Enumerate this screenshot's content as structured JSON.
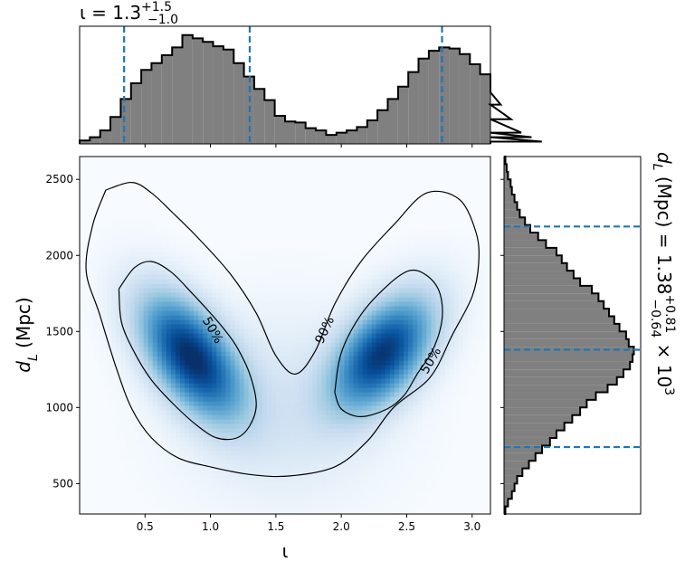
{
  "chart_data": [
    {
      "type": "heatmap",
      "panel": "joint",
      "xlabel": "ι",
      "ylabel": "d_L (Mpc)",
      "xlim": [
        0.0,
        3.14
      ],
      "ylim": [
        300,
        2650
      ],
      "xticks": [
        0.5,
        1.0,
        1.5,
        2.0,
        2.5,
        3.0
      ],
      "xtick_labels": [
        "0.5",
        "1.0",
        "1.5",
        "2.0",
        "2.5",
        "3.0"
      ],
      "yticks": [
        500,
        1000,
        1500,
        2000,
        2500
      ],
      "ytick_labels": [
        "500",
        "1000",
        "1500",
        "2000",
        "2500"
      ],
      "colormap": "Blues",
      "density_modes": [
        {
          "x": 0.85,
          "y": 1340,
          "sx": 0.26,
          "sy": 270,
          "rho": -0.55,
          "w": 1.0
        },
        {
          "x": 2.32,
          "y": 1360,
          "sx": 0.26,
          "sy": 250,
          "rho": 0.5,
          "w": 0.95
        }
      ],
      "contours": [
        {
          "level": "90%",
          "points": [
            [
              0.2,
              2430
            ],
            [
              0.4,
              2480
            ],
            [
              0.55,
              2410
            ],
            [
              0.7,
              2290
            ],
            [
              0.9,
              2120
            ],
            [
              1.15,
              1880
            ],
            [
              1.35,
              1620
            ],
            [
              1.5,
              1340
            ],
            [
              1.65,
              1220
            ],
            [
              1.8,
              1370
            ],
            [
              1.95,
              1680
            ],
            [
              2.15,
              1960
            ],
            [
              2.4,
              2200
            ],
            [
              2.65,
              2410
            ],
            [
              2.9,
              2370
            ],
            [
              3.03,
              2150
            ],
            [
              3.05,
              1950
            ],
            [
              3.0,
              1730
            ],
            [
              2.85,
              1480
            ],
            [
              2.68,
              1200
            ],
            [
              2.4,
              1000
            ],
            [
              2.2,
              780
            ],
            [
              1.95,
              610
            ],
            [
              1.6,
              550
            ],
            [
              1.3,
              560
            ],
            [
              1.0,
              610
            ],
            [
              0.75,
              670
            ],
            [
              0.55,
              800
            ],
            [
              0.4,
              990
            ],
            [
              0.28,
              1260
            ],
            [
              0.15,
              1620
            ],
            [
              0.05,
              1900
            ],
            [
              0.1,
              2200
            ],
            [
              0.2,
              2430
            ]
          ],
          "label_x": 1.87,
          "label_y": 1510,
          "label_angle": -65
        },
        {
          "level": "50%",
          "points": [
            [
              0.3,
              1780
            ],
            [
              0.42,
              1920
            ],
            [
              0.55,
              1960
            ],
            [
              0.7,
              1890
            ],
            [
              0.85,
              1760
            ],
            [
              1.0,
              1620
            ],
            [
              1.1,
              1520
            ],
            [
              1.2,
              1400
            ],
            [
              1.3,
              1220
            ],
            [
              1.35,
              1020
            ],
            [
              1.3,
              880
            ],
            [
              1.2,
              800
            ],
            [
              1.05,
              800
            ],
            [
              0.9,
              880
            ],
            [
              0.72,
              1020
            ],
            [
              0.55,
              1180
            ],
            [
              0.42,
              1360
            ],
            [
              0.32,
              1560
            ],
            [
              0.3,
              1780
            ]
          ],
          "label_x": 1.02,
          "label_y": 1510,
          "label_angle": 60
        },
        {
          "level": "50%",
          "points": [
            [
              1.95,
              1100
            ],
            [
              2.0,
              1360
            ],
            [
              2.15,
              1610
            ],
            [
              2.35,
              1800
            ],
            [
              2.52,
              1900
            ],
            [
              2.65,
              1870
            ],
            [
              2.75,
              1760
            ],
            [
              2.77,
              1580
            ],
            [
              2.7,
              1380
            ],
            [
              2.58,
              1220
            ],
            [
              2.48,
              1080
            ],
            [
              2.35,
              990
            ],
            [
              2.15,
              940
            ],
            [
              2.0,
              990
            ],
            [
              1.95,
              1100
            ]
          ],
          "label_x": 2.68,
          "label_y": 1310,
          "label_angle": -60
        }
      ]
    },
    {
      "type": "bar",
      "panel": "marginal-top",
      "title": "ι = 1.3",
      "title_sup": "+1.5",
      "title_sub": "−1.0",
      "bin_start": 0.0,
      "bin_width": 0.0785,
      "values": [
        0.03,
        0.06,
        0.12,
        0.24,
        0.4,
        0.54,
        0.66,
        0.72,
        0.79,
        0.86,
        0.97,
        0.94,
        0.91,
        0.87,
        0.84,
        0.72,
        0.6,
        0.49,
        0.39,
        0.25,
        0.2,
        0.19,
        0.14,
        0.12,
        0.08,
        0.1,
        0.12,
        0.15,
        0.21,
        0.3,
        0.4,
        0.51,
        0.64,
        0.76,
        0.83,
        0.86,
        0.85,
        0.8,
        0.71,
        0.62,
        0.46,
        0.35,
        0.22,
        0.1,
        0.06,
        0.02
      ],
      "ymax": 1.0,
      "quantile_lines": [
        0.34,
        1.3,
        2.77
      ],
      "xlim": [
        0.0,
        3.14
      ]
    },
    {
      "type": "bar",
      "panel": "marginal-right",
      "orientation": "horizontal",
      "label_main": "d_L (Mpc) = 1.38",
      "label_sup": "+0.81",
      "label_sub": "−0.64",
      "label_tail": "× 10^3",
      "bin_start": 300,
      "bin_width": 50,
      "values": [
        0.01,
        0.03,
        0.06,
        0.08,
        0.1,
        0.14,
        0.19,
        0.24,
        0.29,
        0.35,
        0.4,
        0.46,
        0.52,
        0.58,
        0.63,
        0.7,
        0.79,
        0.86,
        0.91,
        0.96,
        0.98,
        0.99,
        0.95,
        0.93,
        0.88,
        0.84,
        0.8,
        0.76,
        0.72,
        0.67,
        0.58,
        0.53,
        0.48,
        0.44,
        0.4,
        0.32,
        0.26,
        0.2,
        0.16,
        0.12,
        0.1,
        0.08,
        0.06,
        0.05,
        0.03,
        0.02,
        0.01
      ],
      "xmax": 1.0,
      "quantile_lines": [
        740,
        1380,
        2190
      ],
      "ylim": [
        300,
        2650
      ]
    }
  ]
}
